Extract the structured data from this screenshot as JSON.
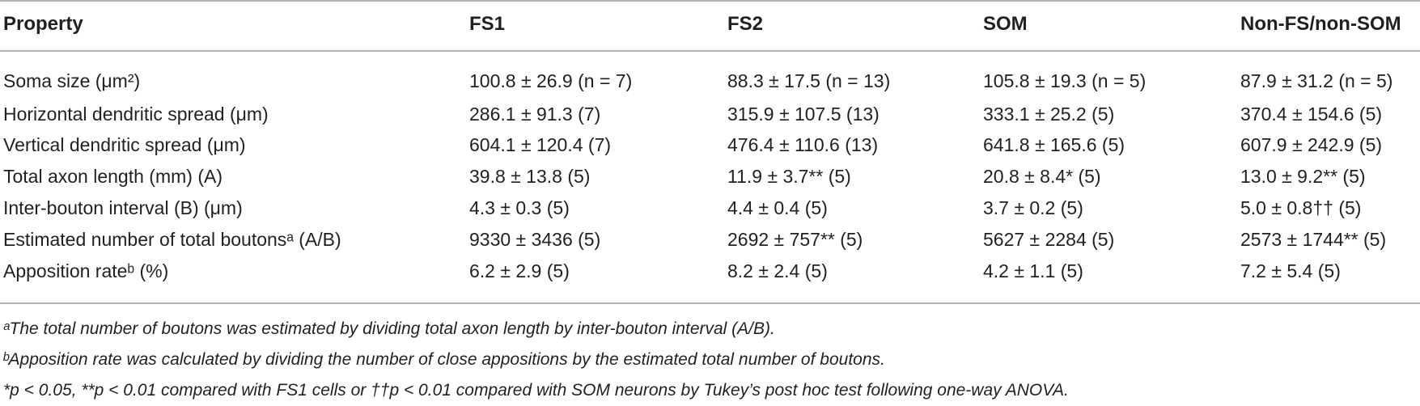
{
  "table": {
    "headers": [
      "Property",
      "FS1",
      "FS2",
      "SOM",
      "Non-FS/non-SOM"
    ],
    "rows": [
      {
        "property": "Soma size (μm²)",
        "fs1": "100.8 ± 26.9 (n = 7)",
        "fs2": "88.3 ± 17.5 (n = 13)",
        "som": "105.8 ± 19.3 (n = 5)",
        "nonfs": "87.9 ± 31.2 (n = 5)"
      },
      {
        "property": "Horizontal dendritic spread (μm)",
        "fs1": "286.1 ± 91.3 (7)",
        "fs2": "315.9 ± 107.5 (13)",
        "som": "333.1 ± 25.2 (5)",
        "nonfs": "370.4 ± 154.6 (5)"
      },
      {
        "property": "Vertical dendritic spread (μm)",
        "fs1": "604.1 ± 120.4 (7)",
        "fs2": "476.4 ± 110.6 (13)",
        "som": "641.8 ± 165.6 (5)",
        "nonfs": "607.9 ± 242.9 (5)"
      },
      {
        "property": "Total axon length (mm) (A)",
        "fs1": "39.8 ± 13.8 (5)",
        "fs2": "11.9 ± 3.7** (5)",
        "som": "20.8 ± 8.4* (5)",
        "nonfs": "13.0 ± 9.2** (5)"
      },
      {
        "property": "Inter-bouton interval (B) (μm)",
        "fs1": "4.3 ± 0.3 (5)",
        "fs2": "4.4 ± 0.4 (5)",
        "som": "3.7 ± 0.2 (5)",
        "nonfs": "5.0 ± 0.8†† (5)"
      },
      {
        "property": "Estimated number of total boutonsᵃ (A/B)",
        "fs1": "9330 ± 3436 (5)",
        "fs2": "2692 ± 757** (5)",
        "som": "5627 ± 2284 (5)",
        "nonfs": "2573 ± 1744** (5)"
      },
      {
        "property": "Apposition rateᵇ (%)",
        "fs1": "6.2 ± 2.9 (5)",
        "fs2": "8.2 ± 2.4 (5)",
        "som": "4.2 ± 1.1 (5)",
        "nonfs": "7.2 ± 5.4 (5)"
      }
    ]
  },
  "footnotes": [
    "ᵃThe total number of boutons was estimated by dividing total axon length by inter-bouton interval (A/B).",
    "ᵇApposition rate was calculated by dividing the number of close appositions by the estimated total number of boutons.",
    "*p < 0.05, **p < 0.01 compared with FS1 cells or ††p < 0.01 compared with SOM neurons by Tukey’s post hoc test following one-way ANOVA."
  ]
}
